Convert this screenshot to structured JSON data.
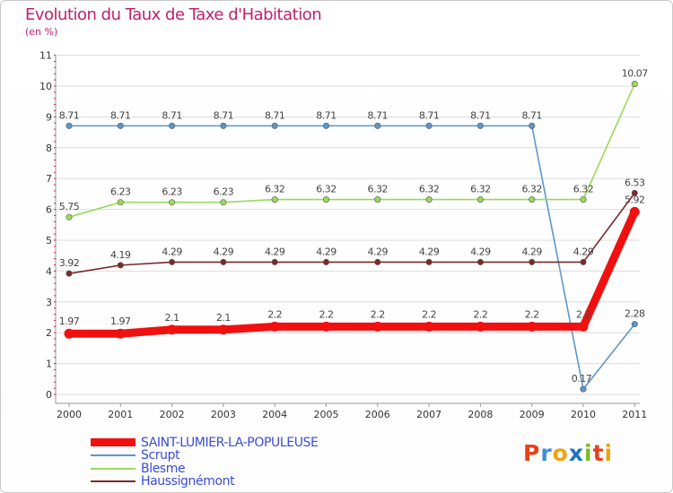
{
  "title": "Evolution du Taux de Taxe d'Habitation",
  "subtitle": "(en %)",
  "logo": {
    "letters": [
      "P",
      "r",
      "o",
      "x",
      "i",
      "t",
      "i"
    ],
    "colors": [
      "#e8401c",
      "#3a90e0",
      "#f2a20f",
      "#1a73c9",
      "#7dba2a",
      "#e8401c",
      "#f2a20f"
    ]
  },
  "chart_data": {
    "type": "line",
    "title": "Evolution du Taux de Taxe d'Habitation",
    "ylabel": "(en %)",
    "categories": [
      "2000",
      "2001",
      "2002",
      "2003",
      "2004",
      "2005",
      "2006",
      "2007",
      "2008",
      "2009",
      "2010",
      "2011"
    ],
    "y_ticks": [
      "0",
      "1",
      "2",
      "3",
      "4",
      "5",
      "6",
      "7",
      "8",
      "9",
      "10",
      "11"
    ],
    "ylim": [
      0,
      11
    ],
    "series": [
      {
        "name": "SAINT-LUMIER-LA-POPULEUSE",
        "color": "#f01010",
        "values": [
          1.97,
          1.97,
          2.1,
          2.1,
          2.2,
          2.2,
          2.2,
          2.2,
          2.2,
          2.2,
          2.2,
          5.92
        ],
        "labels": [
          "1.97",
          "1.97",
          "2.1",
          "2.1",
          "2.2",
          "2.2",
          "2.2",
          "2.2",
          "2.2",
          "2.2",
          "2.2",
          "5.92"
        ]
      },
      {
        "name": "Scrupt",
        "color": "#5b97c9",
        "values": [
          8.71,
          8.71,
          8.71,
          8.71,
          8.71,
          8.71,
          8.71,
          8.71,
          8.71,
          8.71,
          0.17,
          2.28
        ],
        "labels": [
          "8.71",
          "8.71",
          "8.71",
          "8.71",
          "8.71",
          "8.71",
          "8.71",
          "8.71",
          "8.71",
          "8.71",
          "0.17",
          "2.28"
        ]
      },
      {
        "name": "Blesme",
        "color": "#9ad95a",
        "values": [
          5.75,
          6.23,
          6.23,
          6.23,
          6.32,
          6.32,
          6.32,
          6.32,
          6.32,
          6.32,
          6.32,
          10.07
        ],
        "labels": [
          "5.75",
          "6.23",
          "6.23",
          "6.23",
          "6.32",
          "6.32",
          "6.32",
          "6.32",
          "6.32",
          "6.32",
          "6.32",
          "10.07"
        ]
      },
      {
        "name": "Haussignémont",
        "color": "#7a2a2a",
        "values": [
          3.92,
          4.19,
          4.29,
          4.29,
          4.29,
          4.29,
          4.29,
          4.29,
          4.29,
          4.29,
          4.29,
          6.53
        ],
        "labels": [
          "3.92",
          "4.19",
          "4.29",
          "4.29",
          "4.29",
          "4.29",
          "4.29",
          "4.29",
          "4.29",
          "4.29",
          "4.29",
          "6.53"
        ]
      }
    ]
  }
}
